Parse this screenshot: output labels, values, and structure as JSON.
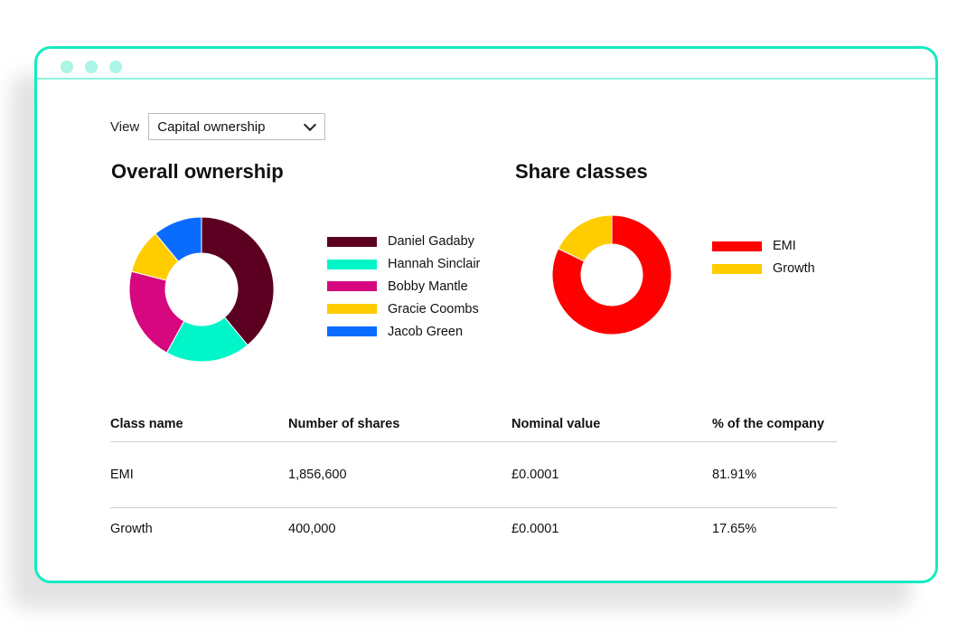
{
  "view": {
    "label": "View",
    "selected": "Capital ownership"
  },
  "overall": {
    "title": "Overall ownership",
    "legend": [
      {
        "name": "Daniel Gadaby",
        "color": "#5c0022"
      },
      {
        "name": "Hannah Sinclair",
        "color": "#00f5c9"
      },
      {
        "name": "Bobby Mantle",
        "color": "#d6077f"
      },
      {
        "name": "Gracie Coombs",
        "color": "#ffcc00"
      },
      {
        "name": "Jacob Green",
        "color": "#0a6cff"
      }
    ]
  },
  "classes": {
    "title": "Share classes",
    "legend": [
      {
        "name": "EMI",
        "color": "#ff0000"
      },
      {
        "name": "Growth",
        "color": "#ffcc00"
      }
    ]
  },
  "chart_data": [
    {
      "type": "pie",
      "title": "Overall ownership",
      "donut": true,
      "labels": [
        "Daniel Gadaby",
        "Hannah Sinclair",
        "Bobby Mantle",
        "Gracie Coombs",
        "Jacob Green"
      ],
      "values": [
        39,
        19,
        21,
        10,
        11
      ],
      "colors": [
        "#5c0022",
        "#00f5c9",
        "#d6077f",
        "#ffcc00",
        "#0a6cff"
      ],
      "legend": "right"
    },
    {
      "type": "pie",
      "title": "Share classes",
      "donut": true,
      "labels": [
        "EMI",
        "Growth"
      ],
      "values": [
        81.91,
        17.65
      ],
      "colors": [
        "#ff0000",
        "#ffcc00"
      ],
      "legend": "right"
    }
  ],
  "table": {
    "headers": [
      "Class name",
      "Number of shares",
      "Nominal value",
      "% of the company"
    ],
    "rows": [
      [
        "EMI",
        "1,856,600",
        "£0.0001",
        "81.91%"
      ],
      [
        "Growth",
        "400,000",
        "£0.0001",
        "17.65%"
      ]
    ]
  }
}
